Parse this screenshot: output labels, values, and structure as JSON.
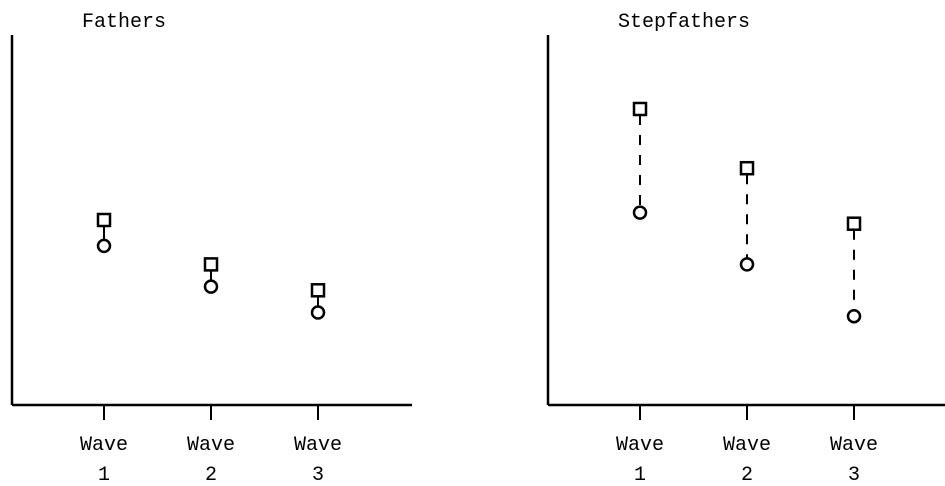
{
  "chart_data": [
    {
      "type": "dot",
      "title": "Fathers",
      "categories": [
        [
          "Wave",
          "1"
        ],
        [
          "Wave",
          "2"
        ],
        [
          "Wave",
          "3"
        ]
      ],
      "series": [
        {
          "marker": "square",
          "color": "#000000",
          "values": [
            50,
            38,
            31
          ]
        },
        {
          "marker": "circle",
          "color": "#000000",
          "values": [
            43,
            32,
            25
          ]
        }
      ],
      "connector": "solid",
      "ylim": [
        0,
        100
      ]
    },
    {
      "type": "dot",
      "title": "Stepfathers",
      "categories": [
        [
          "Wave",
          "1"
        ],
        [
          "Wave",
          "2"
        ],
        [
          "Wave",
          "3"
        ]
      ],
      "series": [
        {
          "marker": "square",
          "color": "#000000",
          "values": [
            80,
            64,
            49
          ]
        },
        {
          "marker": "circle",
          "color": "#000000",
          "values": [
            52,
            38,
            24
          ]
        }
      ],
      "connector": "dashed",
      "ylim": [
        0,
        100
      ]
    }
  ]
}
